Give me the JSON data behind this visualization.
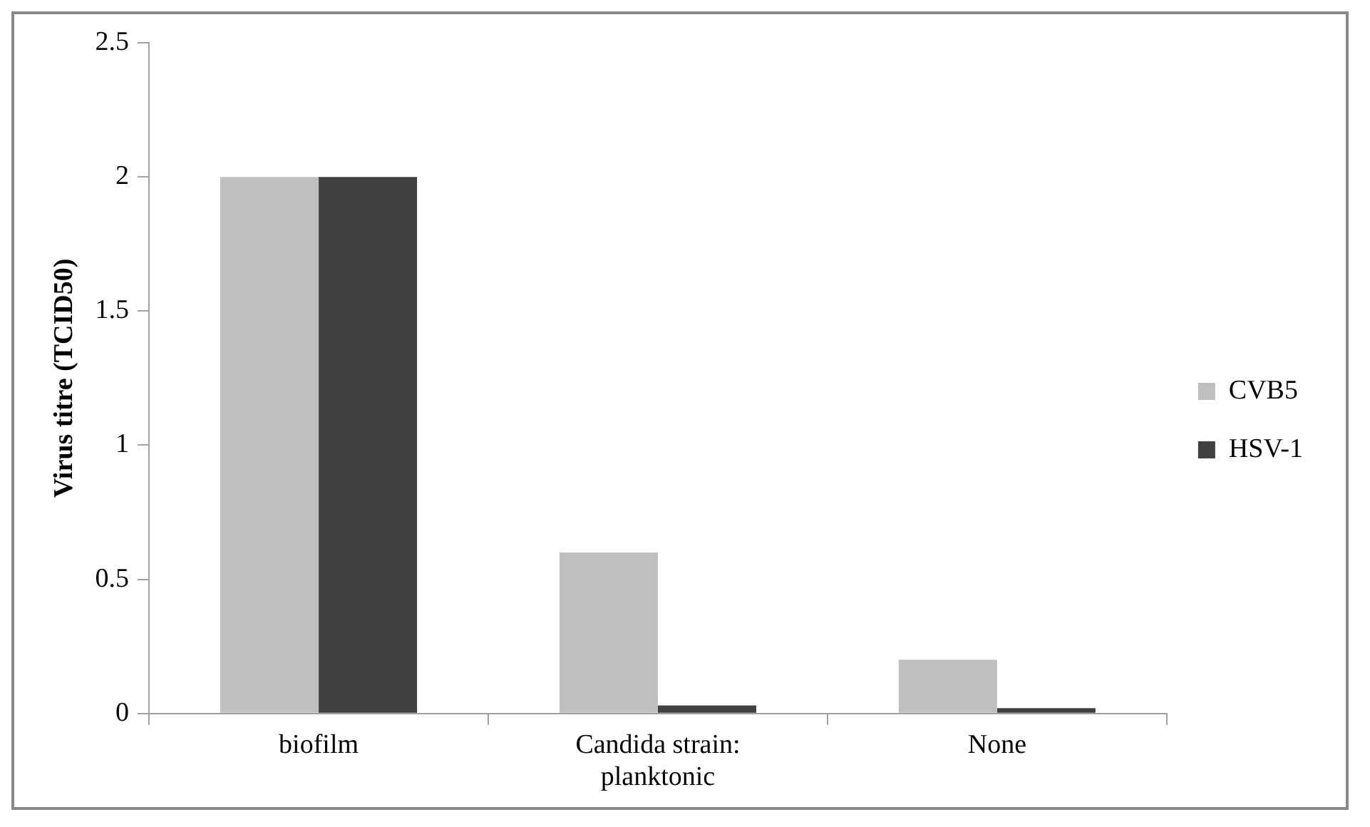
{
  "chart_data": {
    "type": "bar",
    "ylabel": "Virus titre (TCID50)",
    "categories": [
      "biofilm",
      "Candida strain:\nplanktonic",
      "None"
    ],
    "series": [
      {
        "name": "CVB5",
        "color": "#bfbfbf",
        "values": [
          2,
          0.6,
          0.2
        ]
      },
      {
        "name": "HSV-1",
        "color": "#404040",
        "values": [
          2,
          0.03,
          0.02
        ]
      }
    ],
    "ylim": [
      0,
      2.5
    ],
    "yticks": [
      0,
      0.5,
      1,
      1.5,
      2,
      2.5
    ],
    "grid": false,
    "legend": "right"
  }
}
